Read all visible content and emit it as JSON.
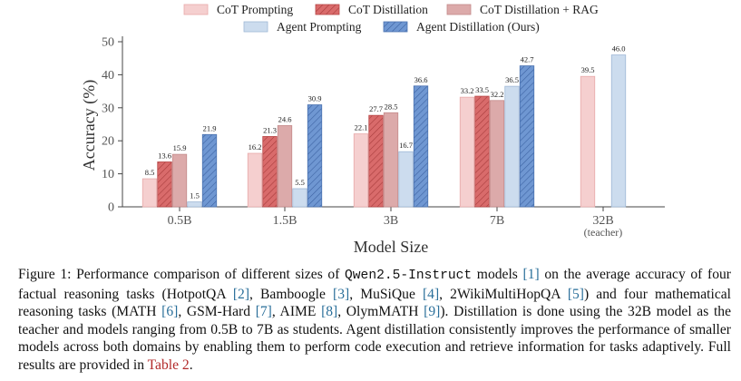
{
  "chart_data": {
    "type": "bar",
    "categories": [
      "0.5B",
      "1.5B",
      "3B",
      "7B",
      "32B"
    ],
    "category_sublabels": [
      "",
      "",
      "",
      "",
      "(teacher)"
    ],
    "xlabel": "Model Size",
    "ylabel": "Accuracy (%)",
    "ylim": [
      0,
      50
    ],
    "yticks": [
      0,
      10,
      20,
      30,
      40,
      50
    ],
    "grid": false,
    "legend_position": "top",
    "series": [
      {
        "name": "CoT Prompting",
        "values": [
          8.5,
          16.2,
          22.1,
          33.2,
          39.5
        ],
        "color": "#f5cfcf",
        "edge": "#e8a9a9",
        "hatch": false
      },
      {
        "name": "CoT Distillation",
        "values": [
          13.6,
          21.3,
          27.7,
          33.5,
          null
        ],
        "color": "#d96b6b",
        "edge": "#b84646",
        "hatch": true
      },
      {
        "name": "CoT Distillation + RAG",
        "values": [
          15.9,
          24.6,
          28.5,
          32.2,
          null
        ],
        "color": "#dcaaaa",
        "edge": "#c48a8a",
        "hatch": false
      },
      {
        "name": "Agent Prompting",
        "values": [
          1.5,
          5.5,
          16.7,
          36.5,
          46.0
        ],
        "color": "#ccdcee",
        "edge": "#9fb8d6",
        "hatch": false
      },
      {
        "name": "Agent Distillation (Ours)",
        "values": [
          21.9,
          30.9,
          36.6,
          42.7,
          null
        ],
        "color": "#6f97d2",
        "edge": "#4a72b0",
        "hatch": true
      }
    ],
    "data_labels": [
      [
        "8.5",
        "13.6",
        "15.9",
        "1.5",
        "21.9"
      ],
      [
        "16.2",
        "21.3",
        "24.6",
        "5.5",
        "30.9"
      ],
      [
        "22.1",
        "27.7",
        "28.5",
        "16.7",
        "36.6"
      ],
      [
        "33.2",
        "33.5",
        "32.2",
        "36.5",
        "42.7"
      ],
      [
        "39.5",
        "",
        "",
        "46.0",
        ""
      ]
    ]
  },
  "caption": {
    "prefix": "Figure 1: Performance comparison of different sizes of ",
    "model": "Qwen2.5-Instruct",
    "p1": " models ",
    "r1": "[1]",
    "p2": " on the average accuracy of four factual reasoning tasks (HotpotQA ",
    "r2": "[2]",
    "p3": ", Bamboogle ",
    "r3": "[3]",
    "p4": ", MuSiQue ",
    "r4": "[4]",
    "p5": ", 2WikiMultiHopQA ",
    "r5": "[5]",
    "p6": ") and four mathematical reasoning tasks (MATH ",
    "r6": "[6]",
    "p7": ", GSM-Hard ",
    "r7": "[7]",
    "p8": ", AIME ",
    "r8": "[8]",
    "p9": ", OlymMATH ",
    "r9": "[9]",
    "p10": "). Distillation is done using the 32B model as the teacher and models ranging from 0.5B to 7B as students. Agent distillation consistently improves the performance of smaller models across both domains by enabling them to perform code execution and retrieve information for tasks adaptively. Full results are provided in ",
    "table_ref": "Table 2",
    "suffix": "."
  }
}
